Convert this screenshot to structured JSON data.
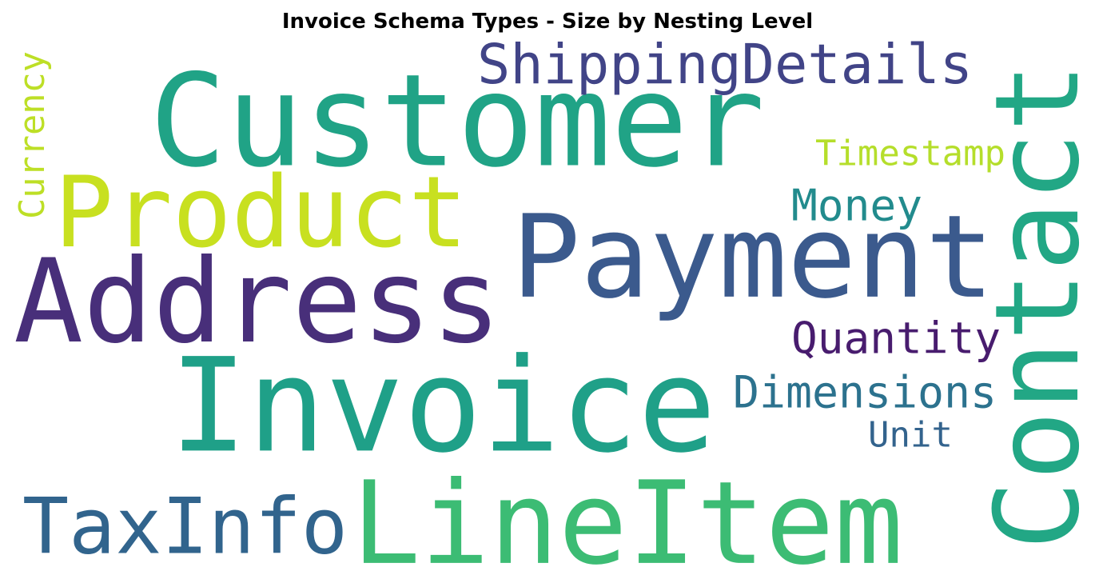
{
  "chart_data": {
    "type": "wordcloud",
    "title": "Invoice Schema Types - Size by Nesting Level",
    "words": [
      {
        "text": "Customer",
        "color": "#20a386"
      },
      {
        "text": "ShippingDetails",
        "color": "#414487"
      },
      {
        "text": "Currency",
        "color": "#bddf26"
      },
      {
        "text": "Contact",
        "color": "#22a785"
      },
      {
        "text": "Timestamp",
        "color": "#b5de2b"
      },
      {
        "text": "Product",
        "color": "#c8e020"
      },
      {
        "text": "Money",
        "color": "#228b8d"
      },
      {
        "text": "Payment",
        "color": "#3b5a8d"
      },
      {
        "text": "Address",
        "color": "#482f7a"
      },
      {
        "text": "Quantity",
        "color": "#481c6e"
      },
      {
        "text": "Invoice",
        "color": "#1fa088"
      },
      {
        "text": "Dimensions",
        "color": "#2c728e"
      },
      {
        "text": "Unit",
        "color": "#33638d"
      },
      {
        "text": "TaxInfo",
        "color": "#31648d"
      },
      {
        "text": "LineItem",
        "color": "#3cbc74"
      }
    ]
  }
}
